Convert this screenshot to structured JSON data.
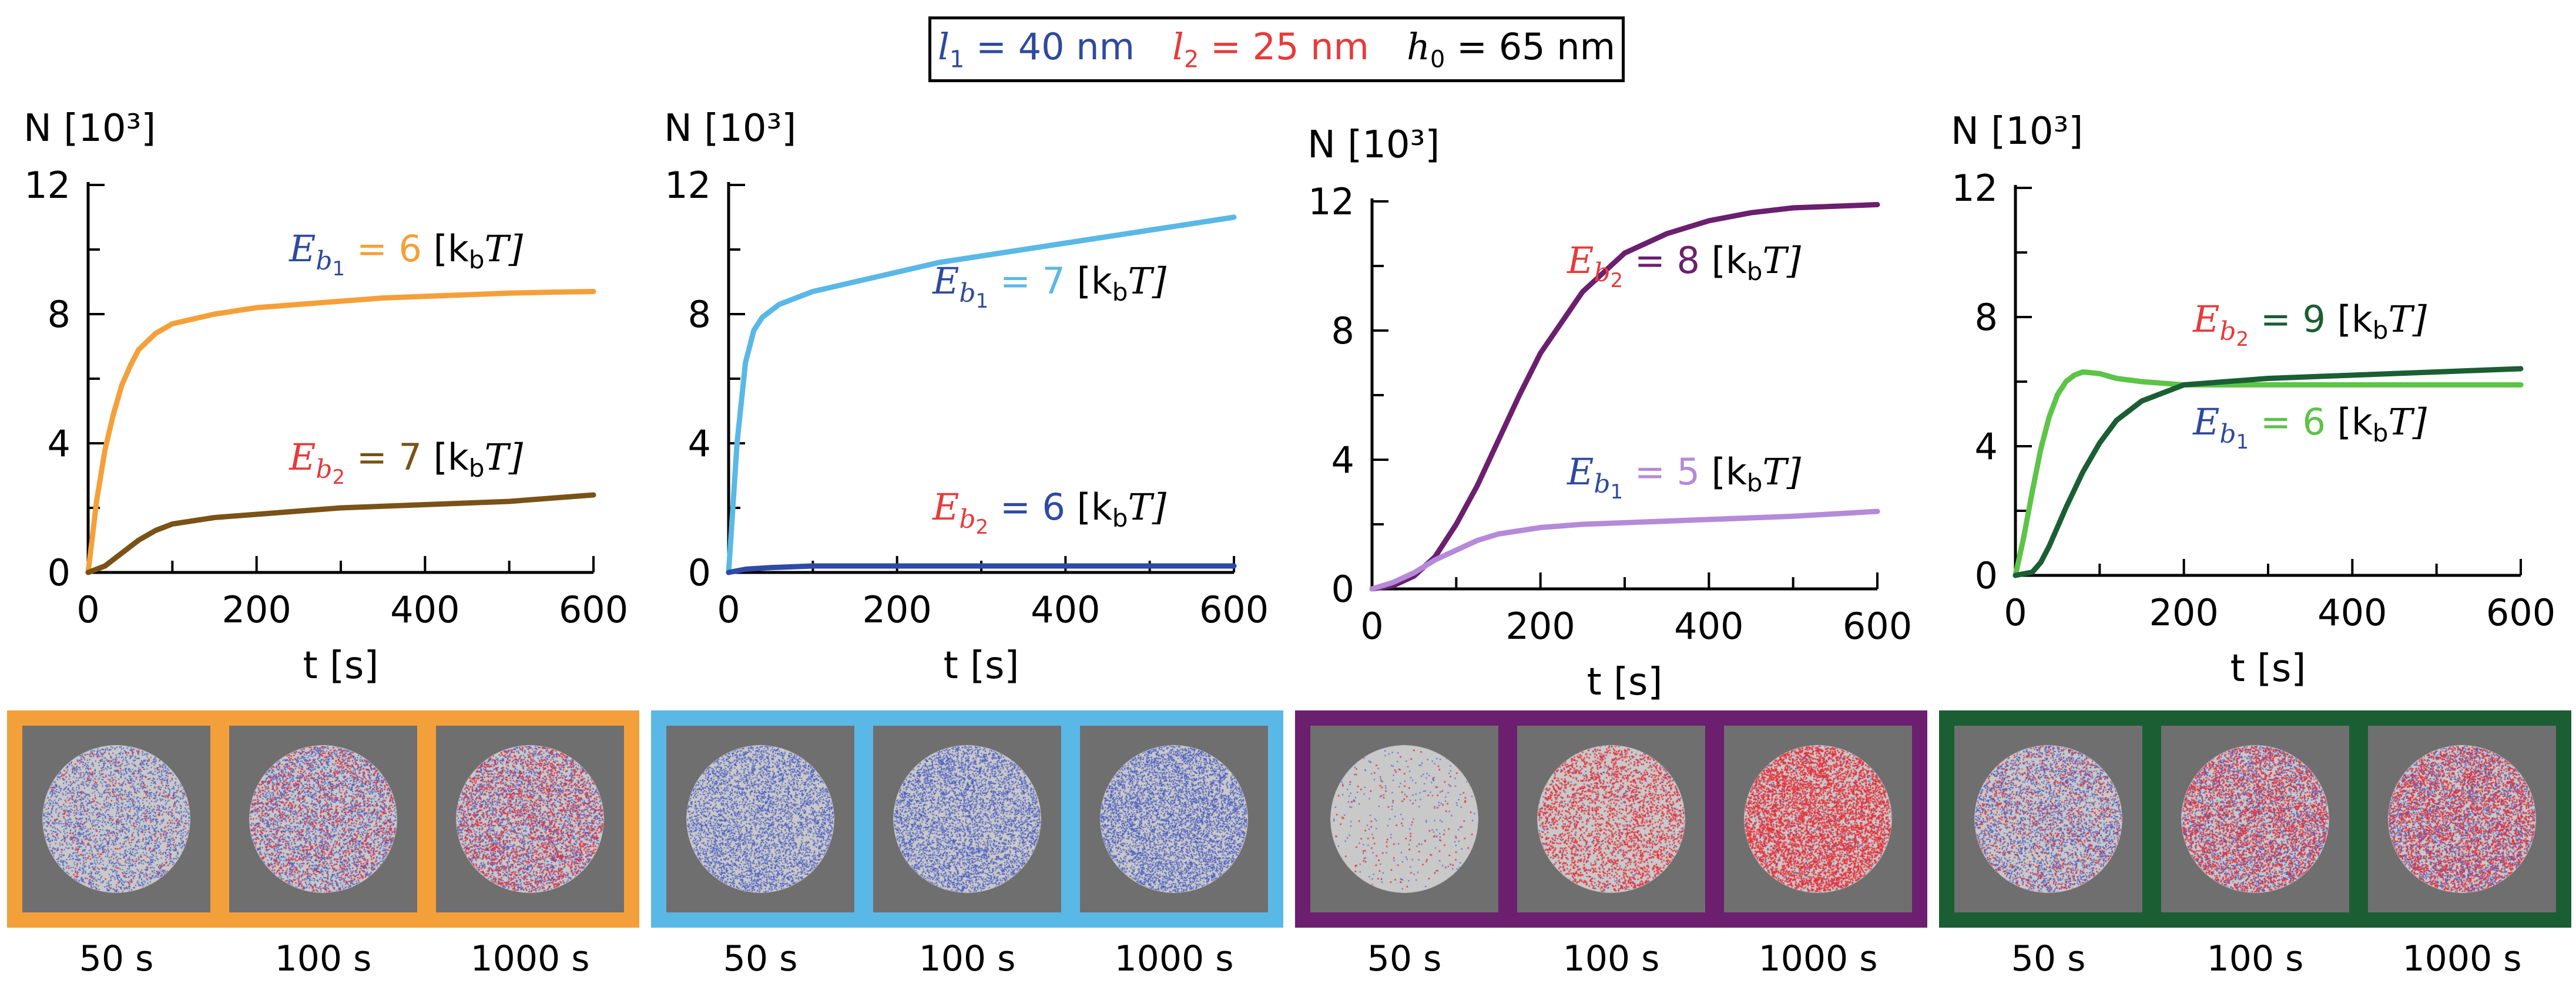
{
  "header": {
    "l1_sym": "l",
    "l1_sub": "1",
    "l1_val": " = 40 nm",
    "l2_sym": "l",
    "l2_sub": "2",
    "l2_val": " = 25 nm",
    "h0_sym": "h",
    "h0_sub": "0",
    "h0_val": " = 65 nm",
    "l1_color": "#2e4a9e",
    "l2_color": "#e83a3a",
    "h0_color": "#000000"
  },
  "chart_data": [
    {
      "type": "line",
      "ylabel": "N [10³]",
      "xlabel": "t [s]",
      "xlim": [
        0,
        600
      ],
      "ylim": [
        0,
        12
      ],
      "xticks": [
        0,
        200,
        400,
        600
      ],
      "yticks": [
        0,
        4,
        8,
        12
      ],
      "series": [
        {
          "name": "Eb1 = 6 [kbT]",
          "color": "#f4a03a",
          "x": [
            0,
            10,
            20,
            30,
            40,
            50,
            60,
            80,
            100,
            150,
            200,
            250,
            300,
            350,
            400,
            450,
            500,
            550,
            600
          ],
          "y": [
            0,
            2.2,
            3.8,
            4.9,
            5.8,
            6.4,
            6.9,
            7.4,
            7.7,
            8.0,
            8.2,
            8.3,
            8.4,
            8.5,
            8.55,
            8.6,
            8.65,
            8.68,
            8.7
          ]
        },
        {
          "name": "Eb2 = 7 [kbT]",
          "color": "#7a5217",
          "x": [
            0,
            20,
            40,
            60,
            80,
            100,
            150,
            200,
            250,
            300,
            400,
            500,
            600
          ],
          "y": [
            0,
            0.2,
            0.6,
            1.0,
            1.3,
            1.5,
            1.7,
            1.8,
            1.9,
            2.0,
            2.1,
            2.2,
            2.4
          ]
        }
      ],
      "labels": [
        {
          "sym": "E",
          "sub": "b",
          "subsub": "1",
          "val": " = 6",
          "unit": " [k",
          "unit_sub": "b",
          "unit_end": "T]",
          "color": "#f4a03a"
        },
        {
          "sym": "E",
          "sub": "b",
          "subsub": "2",
          "val": " = 7",
          "unit": " [k",
          "unit_sub": "b",
          "unit_end": "T]",
          "color": "#7a5217"
        }
      ]
    },
    {
      "type": "line",
      "ylabel": "N [10³]",
      "xlabel": "t [s]",
      "xlim": [
        0,
        600
      ],
      "ylim": [
        0,
        12
      ],
      "xticks": [
        0,
        200,
        400,
        600
      ],
      "yticks": [
        0,
        4,
        8,
        12
      ],
      "series": [
        {
          "name": "Eb1 = 7 [kbT]",
          "color": "#5ab8e6",
          "x": [
            0,
            5,
            10,
            20,
            30,
            40,
            50,
            60,
            80,
            100,
            150,
            200,
            250,
            300,
            400,
            500,
            600
          ],
          "y": [
            0,
            2.0,
            4.0,
            6.5,
            7.5,
            7.9,
            8.1,
            8.3,
            8.5,
            8.7,
            9.0,
            9.3,
            9.6,
            9.8,
            10.2,
            10.6,
            11.0
          ]
        },
        {
          "name": "Eb2 = 6 [kbT]",
          "color": "#2e4aa6",
          "x": [
            0,
            20,
            50,
            100,
            200,
            300,
            400,
            500,
            600
          ],
          "y": [
            0,
            0.1,
            0.15,
            0.2,
            0.2,
            0.2,
            0.2,
            0.2,
            0.2
          ]
        }
      ],
      "labels": [
        {
          "sym": "E",
          "sub": "b",
          "subsub": "1",
          "val": " = 7",
          "unit": " [k",
          "unit_sub": "b",
          "unit_end": "T]",
          "color": "#5ab8e6"
        },
        {
          "sym": "E",
          "sub": "b",
          "subsub": "2",
          "val": " = 6",
          "unit": " [k",
          "unit_sub": "b",
          "unit_end": "T]",
          "color": "#2e4aa6"
        }
      ]
    },
    {
      "type": "line",
      "ylabel": "N [10³]",
      "xlabel": "t [s]",
      "xlim": [
        0,
        600
      ],
      "ylim": [
        0,
        12
      ],
      "xticks": [
        0,
        200,
        400,
        600
      ],
      "yticks": [
        0,
        4,
        8,
        12
      ],
      "series": [
        {
          "name": "Eb2 = 8 [kbT]",
          "color": "#6b1f6e",
          "x": [
            0,
            25,
            50,
            75,
            100,
            125,
            150,
            175,
            200,
            250,
            300,
            350,
            400,
            450,
            500,
            550,
            600
          ],
          "y": [
            0,
            0.1,
            0.4,
            1.0,
            2.0,
            3.2,
            4.6,
            6.0,
            7.3,
            9.2,
            10.4,
            11.0,
            11.4,
            11.65,
            11.8,
            11.85,
            11.9
          ]
        },
        {
          "name": "Eb1 = 5 [kbT]",
          "color": "#b58ad8",
          "x": [
            0,
            25,
            50,
            75,
            100,
            125,
            150,
            200,
            250,
            300,
            400,
            500,
            600
          ],
          "y": [
            0,
            0.2,
            0.5,
            0.9,
            1.2,
            1.5,
            1.7,
            1.9,
            2.0,
            2.05,
            2.15,
            2.25,
            2.4
          ]
        }
      ],
      "labels": [
        {
          "sym": "E",
          "sub": "b",
          "subsub": "2",
          "val": " = 8",
          "unit": " [k",
          "unit_sub": "b",
          "unit_end": "T]",
          "color": "#6b1f6e"
        },
        {
          "sym": "E",
          "sub": "b",
          "subsub": "1",
          "val": " = 5",
          "unit": " [k",
          "unit_sub": "b",
          "unit_end": "T]",
          "color": "#b58ad8"
        }
      ]
    },
    {
      "type": "line",
      "ylabel": "N [10³]",
      "xlabel": "t [s]",
      "xlim": [
        0,
        600
      ],
      "ylim": [
        0,
        12
      ],
      "xticks": [
        0,
        200,
        400,
        600
      ],
      "yticks": [
        0,
        4,
        8,
        12
      ],
      "series": [
        {
          "name": "Eb1 = 6 [kbT]",
          "color": "#5cc447",
          "x": [
            0,
            10,
            20,
            30,
            40,
            50,
            60,
            70,
            80,
            100,
            120,
            150,
            200,
            250,
            300,
            400,
            500,
            600
          ],
          "y": [
            0,
            1.2,
            2.6,
            3.9,
            4.9,
            5.6,
            6.0,
            6.2,
            6.3,
            6.25,
            6.1,
            6.0,
            5.9,
            5.9,
            5.9,
            5.9,
            5.9,
            5.9
          ]
        },
        {
          "name": "Eb2 = 9 [kbT]",
          "color": "#1b5e34",
          "x": [
            0,
            20,
            30,
            40,
            50,
            60,
            80,
            100,
            120,
            150,
            200,
            250,
            300,
            400,
            500,
            600
          ],
          "y": [
            0,
            0.1,
            0.4,
            0.9,
            1.5,
            2.1,
            3.2,
            4.1,
            4.8,
            5.4,
            5.9,
            6.0,
            6.1,
            6.2,
            6.3,
            6.4
          ]
        }
      ],
      "labels": [
        {
          "sym": "E",
          "sub": "b",
          "subsub": "2",
          "val": " = 9",
          "unit": " [k",
          "unit_sub": "b",
          "unit_end": "T]",
          "color": "#1b5e34"
        },
        {
          "sym": "E",
          "sub": "b",
          "subsub": "1",
          "val": " = 6",
          "unit": " [k",
          "unit_sub": "b",
          "unit_end": "T]",
          "color": "#5cc447"
        }
      ]
    }
  ],
  "snapshots": {
    "labels": [
      "50 s",
      "100 s",
      "1000 s"
    ],
    "strips": [
      {
        "border_color": "#f4a03a",
        "frames": [
          {
            "gray": 0.55,
            "blue": 0.4,
            "red": 0.05
          },
          {
            "gray": 0.35,
            "blue": 0.45,
            "red": 0.2
          },
          {
            "gray": 0.3,
            "blue": 0.4,
            "red": 0.3
          }
        ]
      },
      {
        "border_color": "#5ab8e6",
        "frames": [
          {
            "gray": 0.35,
            "blue": 0.65,
            "red": 0.0
          },
          {
            "gray": 0.3,
            "blue": 0.7,
            "red": 0.0
          },
          {
            "gray": 0.2,
            "blue": 0.8,
            "red": 0.0
          }
        ]
      },
      {
        "border_color": "#6b1f6e",
        "frames": [
          {
            "gray": 0.95,
            "blue": 0.03,
            "red": 0.02
          },
          {
            "gray": 0.6,
            "blue": 0.05,
            "red": 0.35
          },
          {
            "gray": 0.2,
            "blue": 0.05,
            "red": 0.75
          }
        ]
      },
      {
        "border_color": "#1b5e34",
        "frames": [
          {
            "gray": 0.4,
            "blue": 0.45,
            "red": 0.15
          },
          {
            "gray": 0.15,
            "blue": 0.4,
            "red": 0.45
          },
          {
            "gray": 0.1,
            "blue": 0.4,
            "red": 0.5
          }
        ]
      }
    ],
    "gray_color": "#c9c9c9",
    "blue_color": "#4a5cc4",
    "red_color": "#e8303a",
    "bg_color": "#6f6f6f"
  }
}
